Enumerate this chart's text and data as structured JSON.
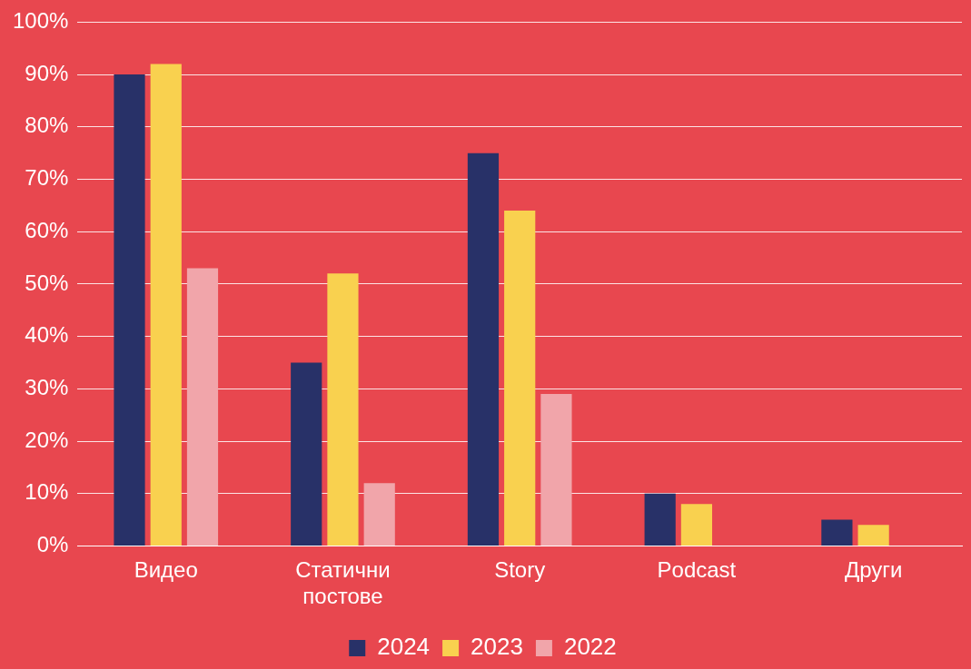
{
  "chart_data": {
    "type": "bar",
    "categories": [
      "Видео",
      "Статични постове",
      "Story",
      "Podcast",
      "Други"
    ],
    "series": [
      {
        "name": "2024",
        "color": "#283168",
        "values": [
          90,
          35,
          75,
          10,
          5
        ]
      },
      {
        "name": "2023",
        "color": "#f9d14f",
        "values": [
          92,
          52,
          64,
          8,
          4
        ]
      },
      {
        "name": "2022",
        "color": "#f1a5aa",
        "values": [
          53,
          12,
          29,
          null,
          null
        ]
      }
    ],
    "ylim": [
      0,
      100
    ],
    "yticks": [
      {
        "value": 0,
        "label": "0%"
      },
      {
        "value": 10,
        "label": "10%"
      },
      {
        "value": 20,
        "label": "20%"
      },
      {
        "value": 30,
        "label": "30%"
      },
      {
        "value": 40,
        "label": "40%"
      },
      {
        "value": 50,
        "label": "50%"
      },
      {
        "value": 60,
        "label": "60%"
      },
      {
        "value": 70,
        "label": "70%"
      },
      {
        "value": 80,
        "label": "80%"
      },
      {
        "value": 90,
        "label": "90%"
      },
      {
        "value": 100,
        "label": "100%"
      }
    ],
    "grid": "y",
    "legend": "bottom"
  }
}
